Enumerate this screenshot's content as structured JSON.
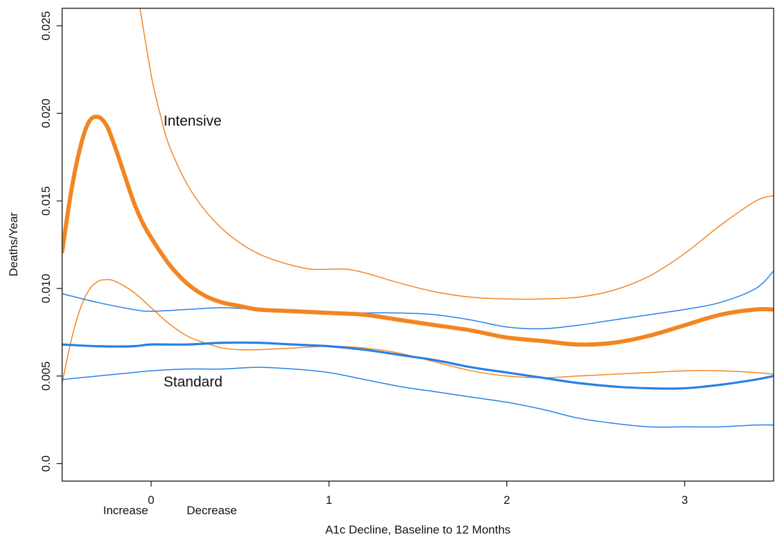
{
  "chart_data": {
    "type": "line",
    "title": "",
    "xlabel": "A1c Decline, Baseline to 12 Months",
    "ylabel": "Deaths/Year",
    "xlim": [
      -0.5,
      3.5
    ],
    "ylim": [
      -0.001,
      0.026
    ],
    "x_ticks": [
      0,
      1,
      2,
      3
    ],
    "x_tick_labels": [
      "0",
      "1",
      "2",
      "3"
    ],
    "y_ticks": [
      0.0,
      0.005,
      0.01,
      0.015,
      0.02,
      0.025
    ],
    "y_tick_labels": [
      "0.0",
      "0.005",
      "0.010",
      "0.015",
      "0.020",
      "0.025"
    ],
    "grid": false,
    "legend": "none",
    "annotations": [
      {
        "text": "Intensive",
        "x": 0.07,
        "y": 0.0193
      },
      {
        "text": "Standard",
        "x": 0.07,
        "y": 0.0044
      },
      {
        "text": "Increase",
        "x": -0.27,
        "y": -0.0029
      },
      {
        "text": "Decrease",
        "x": 0.2,
        "y": -0.0029
      }
    ],
    "series": [
      {
        "group": "Intensive",
        "role": "estimate",
        "color": "#f28522",
        "x": [
          -0.5,
          -0.45,
          -0.4,
          -0.35,
          -0.3,
          -0.25,
          -0.2,
          -0.15,
          -0.1,
          -0.05,
          0,
          0.1,
          0.2,
          0.3,
          0.4,
          0.5,
          0.6,
          0.8,
          1.0,
          1.2,
          1.4,
          1.6,
          1.8,
          2.0,
          2.2,
          2.4,
          2.6,
          2.8,
          3.0,
          3.2,
          3.4,
          3.5
        ],
        "y": [
          0.0121,
          0.0155,
          0.018,
          0.0195,
          0.0198,
          0.0193,
          0.018,
          0.0165,
          0.015,
          0.0138,
          0.0129,
          0.0114,
          0.0103,
          0.0096,
          0.0092,
          0.009,
          0.0088,
          0.0087,
          0.0086,
          0.0085,
          0.0082,
          0.0079,
          0.0076,
          0.0072,
          0.007,
          0.0068,
          0.0069,
          0.0073,
          0.0079,
          0.0085,
          0.0088,
          0.0088
        ]
      },
      {
        "group": "Intensive",
        "role": "upper",
        "color": "#f28522",
        "x": [
          -0.07,
          0,
          0.05,
          0.1,
          0.2,
          0.3,
          0.4,
          0.5,
          0.6,
          0.7,
          0.8,
          0.9,
          1.0,
          1.1,
          1.2,
          1.3,
          1.4,
          1.6,
          1.8,
          2.0,
          2.2,
          2.4,
          2.6,
          2.8,
          3.0,
          3.2,
          3.4,
          3.5
        ],
        "y": [
          0.0265,
          0.0222,
          0.02,
          0.0182,
          0.016,
          0.0145,
          0.0134,
          0.0126,
          0.012,
          0.0116,
          0.0113,
          0.0111,
          0.0111,
          0.0111,
          0.0109,
          0.0106,
          0.0103,
          0.0098,
          0.0095,
          0.0094,
          0.0094,
          0.0095,
          0.0099,
          0.0107,
          0.012,
          0.0136,
          0.015,
          0.0153
        ]
      },
      {
        "group": "Intensive",
        "role": "lower",
        "color": "#f28522",
        "x": [
          -0.5,
          -0.45,
          -0.4,
          -0.35,
          -0.3,
          -0.25,
          -0.2,
          -0.1,
          0,
          0.1,
          0.2,
          0.3,
          0.4,
          0.5,
          0.6,
          0.8,
          1.0,
          1.2,
          1.4,
          1.6,
          1.8,
          2.0,
          2.2,
          2.4,
          2.6,
          2.8,
          3.0,
          3.2,
          3.4,
          3.5
        ],
        "y": [
          0.0046,
          0.007,
          0.0088,
          0.0099,
          0.0104,
          0.0105,
          0.0104,
          0.0098,
          0.0089,
          0.008,
          0.0073,
          0.0069,
          0.0066,
          0.0065,
          0.0065,
          0.0066,
          0.0067,
          0.0066,
          0.0063,
          0.0058,
          0.0053,
          0.005,
          0.0049,
          0.005,
          0.0051,
          0.0052,
          0.0053,
          0.0053,
          0.0052,
          0.0051
        ]
      },
      {
        "group": "Standard",
        "role": "estimate",
        "color": "#2680e6",
        "x": [
          -0.5,
          -0.3,
          -0.1,
          0,
          0.2,
          0.4,
          0.6,
          0.8,
          1.0,
          1.2,
          1.4,
          1.6,
          1.8,
          2.0,
          2.2,
          2.4,
          2.6,
          2.8,
          3.0,
          3.2,
          3.4,
          3.5
        ],
        "y": [
          0.0068,
          0.0067,
          0.0067,
          0.0068,
          0.0068,
          0.0069,
          0.0069,
          0.0068,
          0.0067,
          0.0065,
          0.0062,
          0.0059,
          0.0055,
          0.0052,
          0.0049,
          0.0046,
          0.0044,
          0.0043,
          0.0043,
          0.0045,
          0.0048,
          0.005
        ]
      },
      {
        "group": "Standard",
        "role": "upper",
        "color": "#2680e6",
        "x": [
          -0.5,
          -0.3,
          -0.1,
          0,
          0.2,
          0.4,
          0.6,
          0.8,
          1.0,
          1.2,
          1.4,
          1.6,
          1.8,
          2.0,
          2.2,
          2.4,
          2.6,
          2.8,
          3.0,
          3.2,
          3.4,
          3.5
        ],
        "y": [
          0.0097,
          0.0092,
          0.0088,
          0.0087,
          0.0088,
          0.0089,
          0.0088,
          0.0087,
          0.0086,
          0.0086,
          0.0086,
          0.0085,
          0.0082,
          0.0078,
          0.0077,
          0.0079,
          0.0082,
          0.0085,
          0.0088,
          0.0092,
          0.01,
          0.011
        ]
      },
      {
        "group": "Standard",
        "role": "lower",
        "color": "#2680e6",
        "x": [
          -0.5,
          -0.3,
          -0.1,
          0,
          0.2,
          0.4,
          0.6,
          0.8,
          1.0,
          1.2,
          1.4,
          1.6,
          1.8,
          2.0,
          2.2,
          2.4,
          2.6,
          2.8,
          3.0,
          3.2,
          3.4,
          3.5
        ],
        "y": [
          0.0048,
          0.005,
          0.0052,
          0.0053,
          0.0054,
          0.0054,
          0.0055,
          0.0054,
          0.0052,
          0.0048,
          0.0044,
          0.0041,
          0.0038,
          0.0035,
          0.0031,
          0.0026,
          0.0023,
          0.0021,
          0.0021,
          0.0021,
          0.0022,
          0.0022
        ]
      }
    ]
  }
}
